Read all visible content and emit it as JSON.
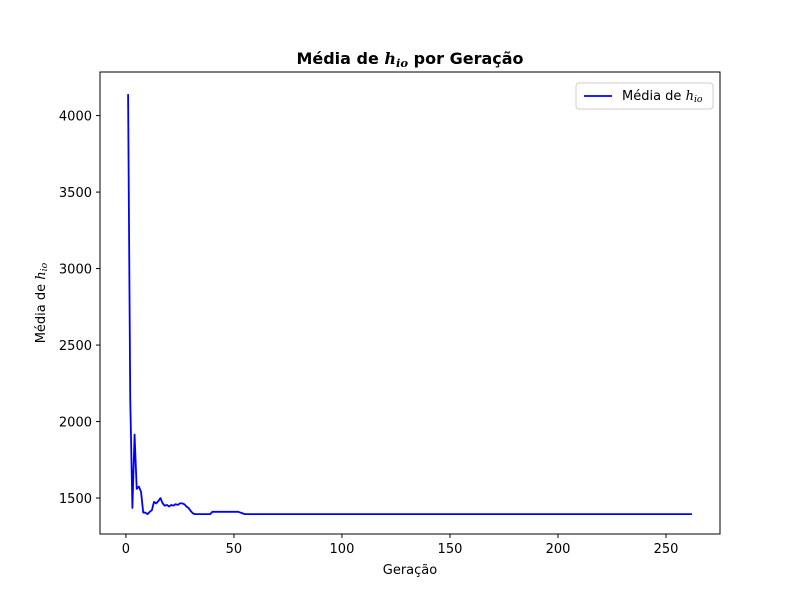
{
  "chart_data": {
    "type": "line",
    "title": "Média de h_io por Geração",
    "title_parts": {
      "prefix": "Média de ",
      "var": "h",
      "sub": "io",
      "suffix": " por Geração"
    },
    "xlabel": "Geração",
    "ylabel": "Média de h_io",
    "ylabel_parts": {
      "prefix": "Média de ",
      "var": "h",
      "sub": "io"
    },
    "xlim": [
      -12,
      275
    ],
    "ylim": [
      1265,
      4285
    ],
    "xticks": [
      0,
      50,
      100,
      150,
      200,
      250
    ],
    "yticks": [
      1500,
      2000,
      2500,
      3000,
      3500,
      4000
    ],
    "grid": false,
    "legend_position": "top-right",
    "series": [
      {
        "name": "Média de h_io",
        "name_parts": {
          "prefix": "Média de ",
          "var": "h",
          "sub": "io"
        },
        "color": "#0000ff",
        "x": [
          1,
          2,
          3,
          4,
          5,
          6,
          7,
          8,
          9,
          10,
          11,
          12,
          13,
          14,
          15,
          16,
          17,
          18,
          19,
          20,
          21,
          22,
          23,
          24,
          25,
          26,
          27,
          28,
          29,
          30,
          31,
          32,
          34,
          36,
          38,
          39,
          40,
          42,
          45,
          50,
          52,
          54,
          55,
          60,
          80,
          100,
          150,
          200,
          250,
          262
        ],
        "y": [
          4140,
          2150,
          1435,
          1915,
          1560,
          1575,
          1540,
          1405,
          1405,
          1395,
          1410,
          1420,
          1475,
          1465,
          1480,
          1500,
          1465,
          1450,
          1455,
          1445,
          1455,
          1450,
          1460,
          1455,
          1465,
          1465,
          1460,
          1445,
          1435,
          1415,
          1400,
          1395,
          1395,
          1395,
          1395,
          1395,
          1410,
          1410,
          1410,
          1410,
          1410,
          1400,
          1395,
          1395,
          1395,
          1395,
          1395,
          1395,
          1395,
          1395
        ]
      }
    ]
  }
}
